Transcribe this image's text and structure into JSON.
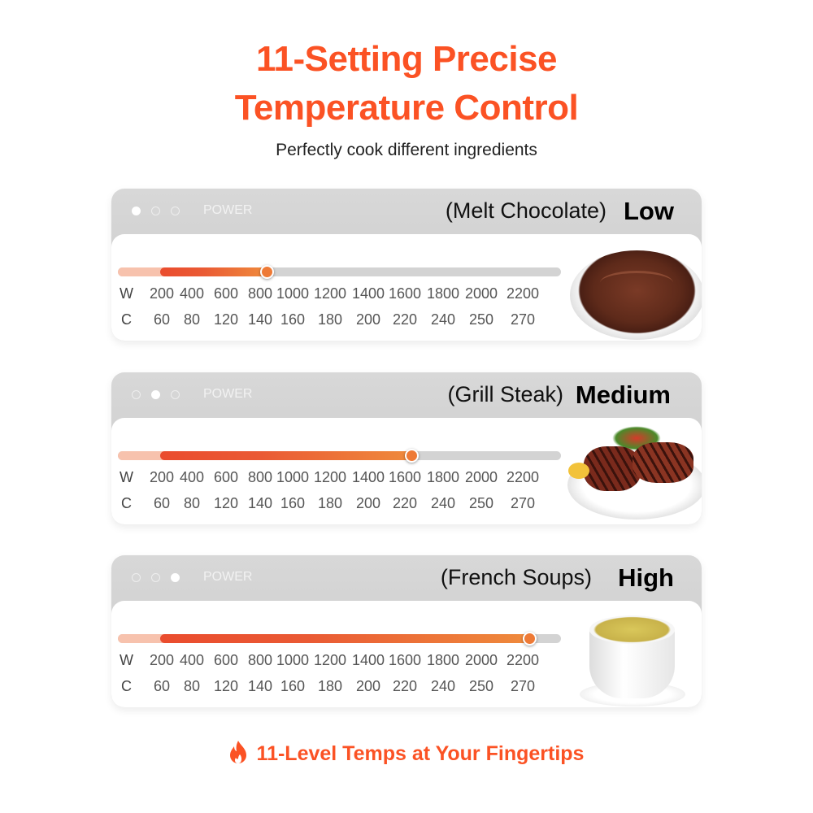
{
  "header": {
    "title_line1": "11-Setting Precise",
    "title_line2": "Temperature Control",
    "subtitle": "Perfectly cook different ingredients"
  },
  "scale": {
    "w_label": "W",
    "c_label": "C",
    "watts": [
      "200",
      "400",
      "600",
      "800",
      "1000",
      "1200",
      "1400",
      "1600",
      "1800",
      "2000",
      "2200"
    ],
    "celsius": [
      "60",
      "80",
      "120",
      "140",
      "160",
      "180",
      "200",
      "220",
      "240",
      "250",
      "270"
    ]
  },
  "cards": [
    {
      "power_label": "POWER",
      "dish": "(Melt Chocolate)",
      "level": "Low",
      "active_dot": 0,
      "selected_w": 800,
      "image": "chocolate-bowl"
    },
    {
      "power_label": "POWER",
      "dish": "(Grill Steak)",
      "level": "Medium",
      "active_dot": 1,
      "selected_w": 1600,
      "image": "steak-plate"
    },
    {
      "power_label": "POWER",
      "dish": "(French Soups)",
      "level": "High",
      "active_dot": 2,
      "selected_w": 2200,
      "image": "soup-cup"
    }
  ],
  "footer": {
    "text": "11-Level Temps at Your Fingertips",
    "icon": "flame-icon"
  },
  "colors": {
    "accent": "#fb5224",
    "slider": "#ee7a36",
    "track": "#d3d3d3"
  }
}
